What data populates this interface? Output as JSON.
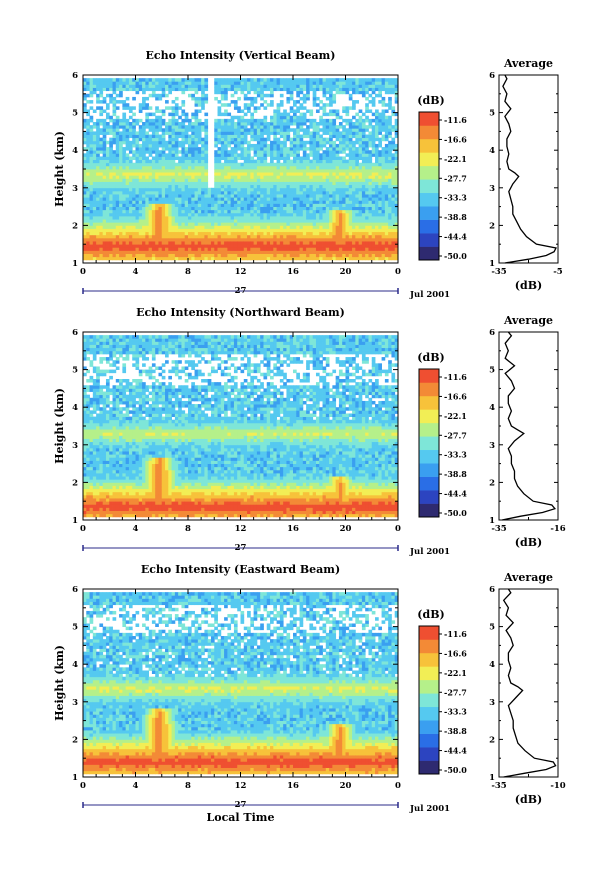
{
  "chart_data": [
    {
      "type": "heatmap",
      "title": "Echo Intensity (Vertical Beam)",
      "xlabel": "",
      "ylabel": "Height (km)",
      "x_ticks": [
        "0",
        "4",
        "8",
        "12",
        "16",
        "20",
        "0"
      ],
      "y_ticks": [
        "1",
        "2",
        "3",
        "4",
        "5",
        "6"
      ],
      "xlim": [
        0,
        24
      ],
      "ylim": [
        1,
        6
      ],
      "date_label": "27",
      "date_suffix": "Jul 2001",
      "colorbar": {
        "unit": "(dB)",
        "ticks": [
          "-11.6",
          "-16.6",
          "-22.1",
          "-27.7",
          "-33.3",
          "-38.8",
          "-44.4",
          "-50.0"
        ]
      },
      "features": {
        "base_band": {
          "height_km": 1.45,
          "value_db": -10
        },
        "elevated_layer": {
          "height_km": 3.35,
          "value_db": -23
        },
        "plumes": [
          {
            "time_h": 5.8,
            "top_km": 2.6,
            "value_db": -12
          },
          {
            "time_h": 19.6,
            "top_km": 2.4,
            "value_db": -13
          }
        ],
        "gap_height_km": [
          4.8,
          5.6
        ]
      },
      "profile": {
        "title": "Average",
        "xlabel": "(dB)",
        "x_ticks": [
          "-35",
          "-5"
        ],
        "xlim": [
          -35,
          -5
        ],
        "y_ticks": [
          "1",
          "2",
          "3",
          "4",
          "5",
          "6"
        ],
        "ylim": [
          1,
          6
        ],
        "height_km": [
          1.0,
          1.1,
          1.2,
          1.3,
          1.4,
          1.5,
          1.7,
          1.9,
          2.1,
          2.3,
          2.5,
          2.7,
          2.9,
          3.1,
          3.3,
          3.4,
          3.5,
          3.7,
          3.9,
          4.1,
          4.3,
          4.5,
          4.7,
          4.9,
          5.1,
          5.3,
          5.5,
          5.7,
          5.9,
          6.0
        ],
        "value_db": [
          -32,
          -20,
          -11,
          -7,
          -6,
          -16,
          -21,
          -24,
          -26,
          -28,
          -28,
          -29,
          -30,
          -28,
          -25,
          -27,
          -30,
          -31,
          -30,
          -31,
          -31,
          -29,
          -30,
          -32,
          -29,
          -32,
          -31,
          -33,
          -31,
          -32
        ]
      }
    },
    {
      "type": "heatmap",
      "title": "Echo Intensity (Northward Beam)",
      "xlabel": "",
      "ylabel": "Height (km)",
      "x_ticks": [
        "0",
        "4",
        "8",
        "12",
        "16",
        "20",
        "0"
      ],
      "y_ticks": [
        "1",
        "2",
        "3",
        "4",
        "5",
        "6"
      ],
      "xlim": [
        0,
        24
      ],
      "ylim": [
        1,
        6
      ],
      "date_label": "27",
      "date_suffix": "Jul 2001",
      "colorbar": {
        "unit": "(dB)",
        "ticks": [
          "-11.6",
          "-16.6",
          "-22.1",
          "-27.7",
          "-33.3",
          "-38.8",
          "-44.4",
          "-50.0"
        ]
      },
      "features": {
        "base_band": {
          "height_km": 1.35,
          "value_db": -10
        },
        "elevated_layer": {
          "height_km": 3.3,
          "value_db": -24
        },
        "plumes": [
          {
            "time_h": 5.8,
            "top_km": 2.7,
            "value_db": -12
          },
          {
            "time_h": 19.6,
            "top_km": 2.2,
            "value_db": -14
          }
        ],
        "gap_height_km": [
          4.6,
          5.4
        ]
      },
      "profile": {
        "title": "Average",
        "xlabel": "(dB)",
        "x_ticks": [
          "-35",
          "-16"
        ],
        "xlim": [
          -35,
          -16
        ],
        "y_ticks": [
          "1",
          "2",
          "3",
          "4",
          "5",
          "6"
        ],
        "ylim": [
          1,
          6
        ],
        "height_km": [
          1.0,
          1.1,
          1.2,
          1.3,
          1.4,
          1.5,
          1.7,
          1.9,
          2.1,
          2.3,
          2.5,
          2.7,
          2.9,
          3.1,
          3.3,
          3.4,
          3.5,
          3.7,
          3.9,
          4.1,
          4.3,
          4.5,
          4.7,
          4.9,
          5.1,
          5.3,
          5.5,
          5.7,
          5.9,
          6.0
        ],
        "value_db": [
          -34,
          -28,
          -21,
          -17,
          -18,
          -24,
          -27,
          -29,
          -30,
          -30,
          -31,
          -31,
          -32,
          -30,
          -27,
          -29,
          -31,
          -32,
          -31,
          -32,
          -32,
          -30,
          -31,
          -33,
          -30,
          -33,
          -32,
          -33,
          -31,
          -32
        ]
      }
    },
    {
      "type": "heatmap",
      "title": "Echo Intensity (Eastward Beam)",
      "xlabel": "Local Time",
      "ylabel": "Height (km)",
      "x_ticks": [
        "0",
        "4",
        "8",
        "12",
        "16",
        "20",
        "0"
      ],
      "y_ticks": [
        "1",
        "2",
        "3",
        "4",
        "5",
        "6"
      ],
      "xlim": [
        0,
        24
      ],
      "ylim": [
        1,
        6
      ],
      "date_label": "27",
      "date_suffix": "Jul 2001",
      "colorbar": {
        "unit": "(dB)",
        "ticks": [
          "-11.6",
          "-16.6",
          "-22.1",
          "-27.7",
          "-33.3",
          "-38.8",
          "-44.4",
          "-50.0"
        ]
      },
      "features": {
        "base_band": {
          "height_km": 1.4,
          "value_db": -10
        },
        "elevated_layer": {
          "height_km": 3.35,
          "value_db": -23
        },
        "plumes": [
          {
            "time_h": 5.8,
            "top_km": 2.8,
            "value_db": -12
          },
          {
            "time_h": 19.6,
            "top_km": 2.4,
            "value_db": -13
          }
        ],
        "gap_height_km": [
          4.8,
          5.6
        ]
      },
      "profile": {
        "title": "Average",
        "xlabel": "(dB)",
        "x_ticks": [
          "-35",
          "-10"
        ],
        "xlim": [
          -35,
          -10
        ],
        "y_ticks": [
          "1",
          "2",
          "3",
          "4",
          "5",
          "6"
        ],
        "ylim": [
          1,
          6
        ],
        "height_km": [
          1.0,
          1.1,
          1.2,
          1.3,
          1.4,
          1.5,
          1.7,
          1.9,
          2.1,
          2.3,
          2.5,
          2.7,
          2.9,
          3.1,
          3.3,
          3.4,
          3.5,
          3.7,
          3.9,
          4.1,
          4.3,
          4.5,
          4.7,
          4.9,
          5.1,
          5.3,
          5.5,
          5.7,
          5.9,
          6.0
        ],
        "value_db": [
          -33,
          -24,
          -15,
          -11,
          -12,
          -20,
          -24,
          -27,
          -28,
          -29,
          -29,
          -30,
          -31,
          -28,
          -25,
          -27,
          -30,
          -31,
          -30,
          -31,
          -31,
          -29,
          -30,
          -32,
          -29,
          -32,
          -31,
          -33,
          -30,
          -31
        ]
      }
    }
  ],
  "colors": {
    "scale": [
      "#2e2a70",
      "#2c44c0",
      "#2a6ee6",
      "#3a9ff0",
      "#55c9f0",
      "#7ee6d8",
      "#b5f08a",
      "#f2ee55",
      "#f7c23a",
      "#f38a36",
      "#ef4f31"
    ],
    "axis": "#000000",
    "date_axis": "#2b2b8a"
  }
}
